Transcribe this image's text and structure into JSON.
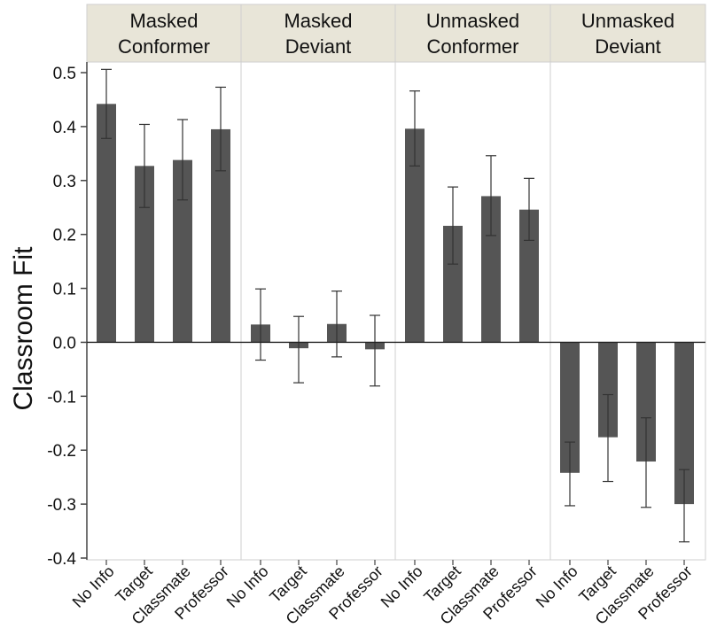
{
  "chart_data": {
    "type": "bar",
    "ylabel": "Classroom Fit",
    "xlabel": "",
    "ylim": [
      -0.4,
      0.5
    ],
    "yticks": [
      0.5,
      0.4,
      0.3,
      0.2,
      0.1,
      0.0,
      -0.1,
      -0.2,
      -0.3,
      -0.4
    ],
    "ytick_labels": [
      "0.5",
      "0.4",
      "0.3",
      "0.2",
      "0.1",
      "0.0",
      "-0.1",
      "-0.2",
      "-0.3",
      "-0.4"
    ],
    "categories": [
      "No Info",
      "Target",
      "Classmate",
      "Professor"
    ],
    "panels": [
      {
        "title_lines": [
          "Masked",
          "Conformer"
        ],
        "values": [
          0.442,
          0.327,
          0.338,
          0.395
        ],
        "err_low": [
          0.378,
          0.25,
          0.264,
          0.318
        ],
        "err_high": [
          0.506,
          0.404,
          0.413,
          0.473
        ]
      },
      {
        "title_lines": [
          "Masked",
          "Deviant"
        ],
        "values": [
          0.033,
          -0.011,
          0.034,
          -0.013
        ],
        "err_low": [
          -0.033,
          -0.075,
          -0.027,
          -0.081
        ],
        "err_high": [
          0.099,
          0.048,
          0.095,
          0.05
        ]
      },
      {
        "title_lines": [
          "Unmasked",
          "Conformer"
        ],
        "values": [
          0.396,
          0.216,
          0.271,
          0.246
        ],
        "err_low": [
          0.327,
          0.145,
          0.198,
          0.189
        ],
        "err_high": [
          0.466,
          0.288,
          0.346,
          0.304
        ]
      },
      {
        "title_lines": [
          "Unmasked",
          "Deviant"
        ],
        "values": [
          -0.242,
          -0.176,
          -0.221,
          -0.3
        ],
        "err_low": [
          -0.303,
          -0.258,
          -0.306,
          -0.37
        ],
        "err_high": [
          -0.185,
          -0.097,
          -0.14,
          -0.236
        ]
      }
    ],
    "grid": false,
    "zero_line": true,
    "colors": {
      "bar": "#555555",
      "header_bg": "#e8e5d8",
      "panel_border": "#cfcfcf",
      "axis": "#444444",
      "error_bar": "#333333"
    }
  }
}
